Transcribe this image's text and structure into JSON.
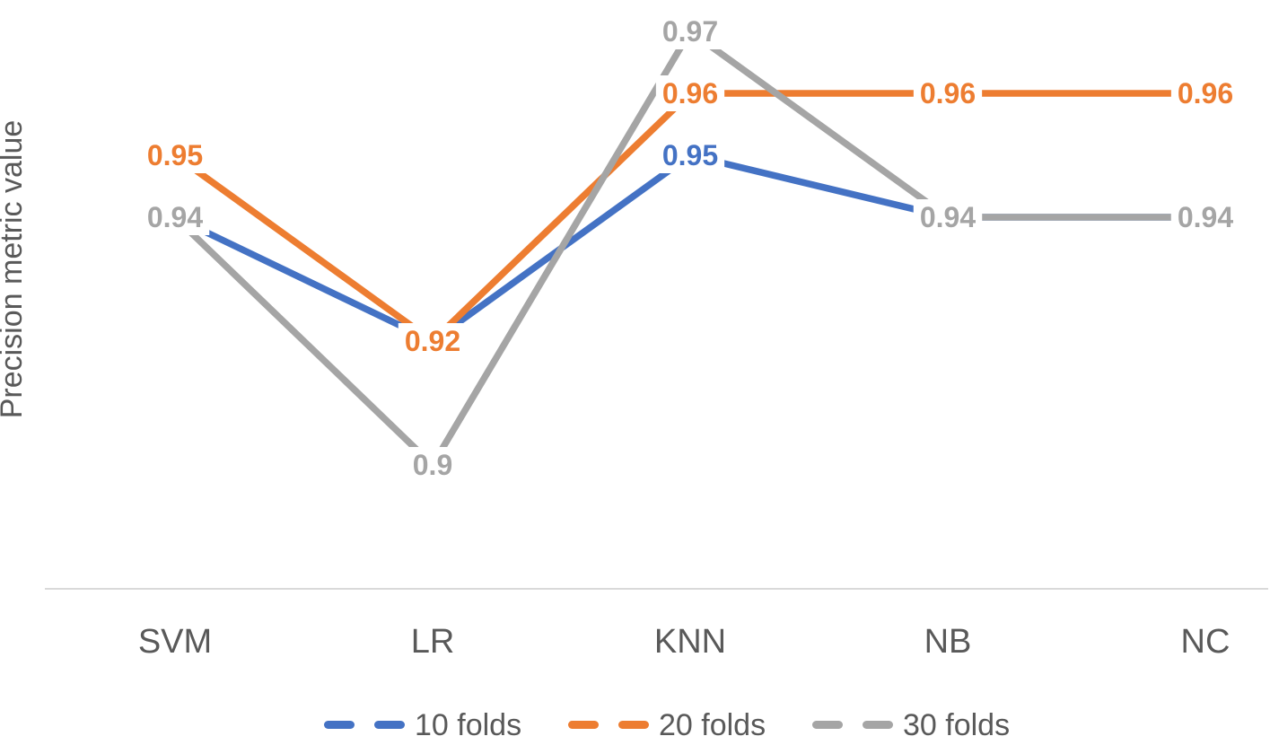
{
  "chart_data": {
    "type": "line",
    "title": "",
    "xlabel": "",
    "ylabel": "Precision metric value",
    "categories": [
      "SVM",
      "LR",
      "KNN",
      "NB",
      "NC"
    ],
    "series": [
      {
        "name": "10 folds",
        "color": "#4472C4",
        "values": [
          0.94,
          0.92,
          0.95,
          0.94,
          0.94
        ],
        "point_labels": [
          "0.94",
          "0.92",
          "0.95",
          "0.94",
          "0.94"
        ]
      },
      {
        "name": "20 folds",
        "color": "#ED7D31",
        "values": [
          0.95,
          0.92,
          0.96,
          0.96,
          0.96
        ],
        "point_labels": [
          "0.95",
          "0.92",
          "0.96",
          "0.96",
          "0.96"
        ]
      },
      {
        "name": "30 folds",
        "color": "#A5A5A5",
        "values": [
          0.94,
          0.9,
          0.97,
          0.94,
          0.94
        ],
        "point_labels": [
          "0.94",
          "0.9",
          "0.97",
          "0.94",
          "0.94"
        ]
      }
    ],
    "legend": {
      "position": "bottom",
      "entries": [
        "10 folds",
        "20 folds",
        "30 folds"
      ]
    },
    "axes": {
      "x_axis_visible": true,
      "y_axis_line_visible": false,
      "y_tick_labels_visible": false,
      "gridlines": false,
      "value_range_shown": [
        0.9,
        0.97
      ]
    },
    "colors": {
      "axis_line": "#D9D9D9",
      "axis_text": "#595959",
      "background": "#FFFFFF"
    },
    "style_notes": {
      "line": "solid",
      "data_labels": "centered on points with white backing box"
    }
  }
}
